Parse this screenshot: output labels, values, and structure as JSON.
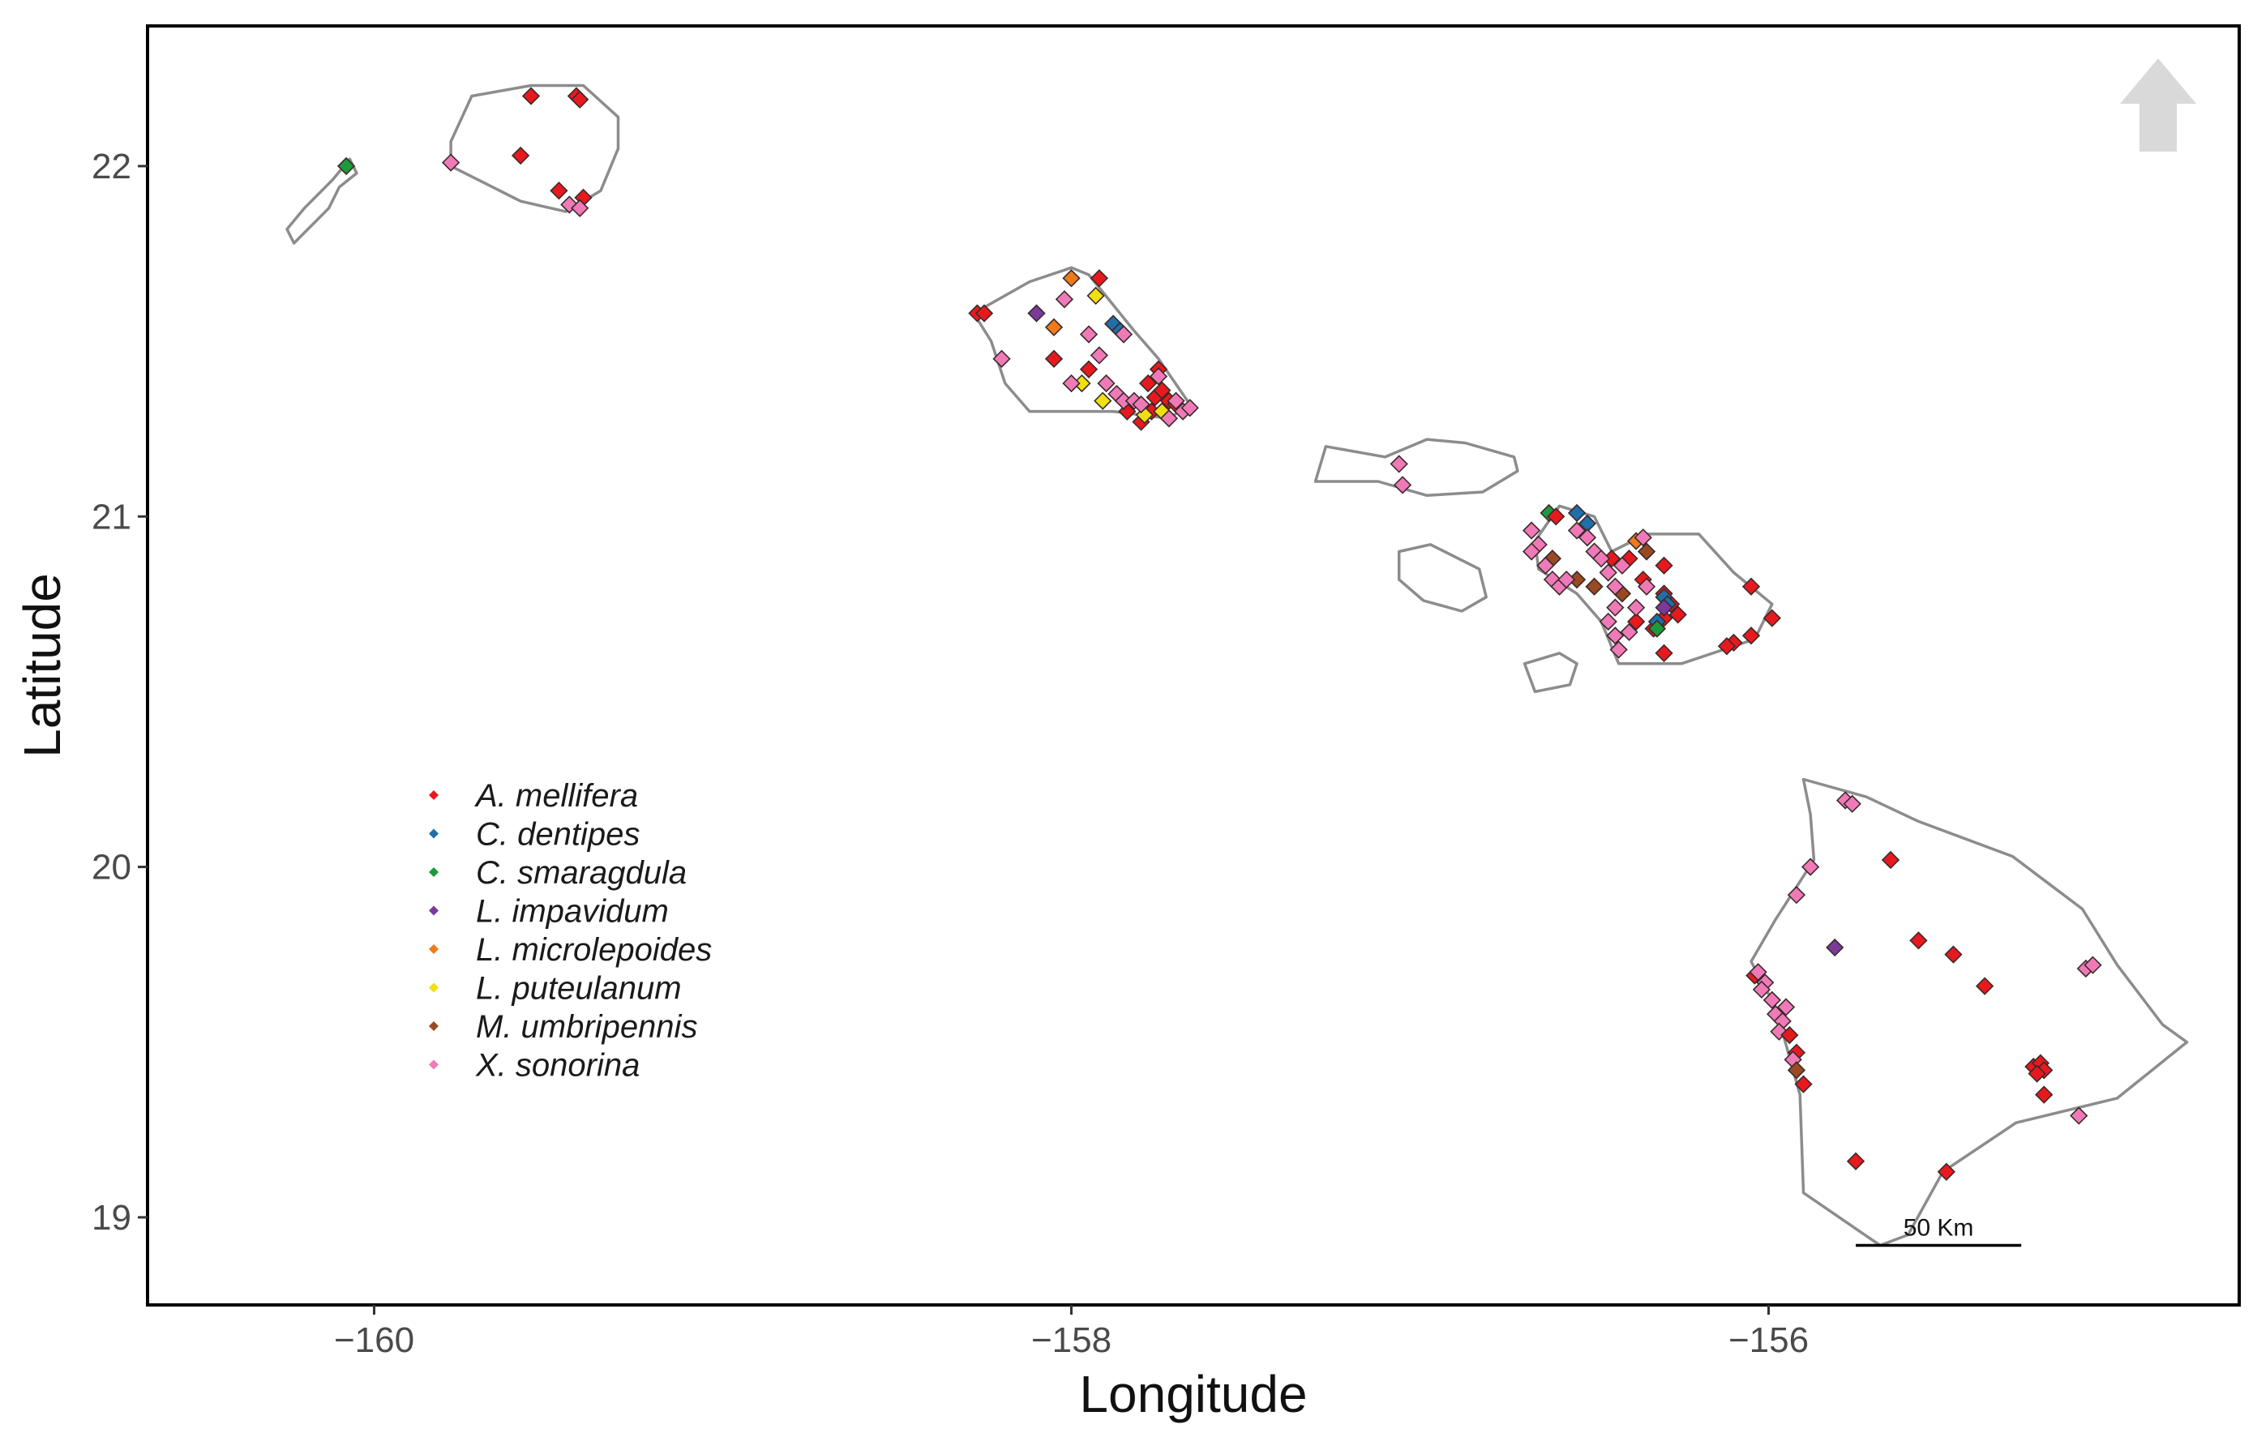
{
  "axes": {
    "xlabel": "Longitude",
    "ylabel": "Latitude",
    "xlim": [
      -160.65,
      -154.65
    ],
    "ylim": [
      18.75,
      22.4
    ],
    "x_ticks": [
      {
        "value": -160,
        "label": "−160"
      },
      {
        "value": -158,
        "label": "−158"
      },
      {
        "value": -156,
        "label": "−156"
      }
    ],
    "y_ticks": [
      {
        "value": 22,
        "label": "22"
      },
      {
        "value": 21,
        "label": "21"
      },
      {
        "value": 20,
        "label": "20"
      },
      {
        "value": 19,
        "label": "19"
      }
    ]
  },
  "map": {
    "north_arrow_icon": "north-arrow-icon",
    "scale_bar": {
      "label": "50 Km",
      "km": 50,
      "x_start": -155.75,
      "lat": 18.92
    },
    "islands": [
      {
        "name": "niihau",
        "coords": [
          [
            -160.05,
            21.98
          ],
          [
            -160.07,
            22.02
          ],
          [
            -160.12,
            21.96
          ],
          [
            -160.2,
            21.88
          ],
          [
            -160.25,
            21.82
          ],
          [
            -160.23,
            21.78
          ],
          [
            -160.17,
            21.84
          ],
          [
            -160.13,
            21.88
          ],
          [
            -160.1,
            21.94
          ],
          [
            -160.05,
            21.98
          ]
        ]
      },
      {
        "name": "kauai",
        "coords": [
          [
            -159.72,
            22.2
          ],
          [
            -159.55,
            22.23
          ],
          [
            -159.4,
            22.23
          ],
          [
            -159.3,
            22.14
          ],
          [
            -159.3,
            22.05
          ],
          [
            -159.35,
            21.93
          ],
          [
            -159.45,
            21.87
          ],
          [
            -159.58,
            21.9
          ],
          [
            -159.7,
            21.96
          ],
          [
            -159.78,
            22.0
          ],
          [
            -159.78,
            22.07
          ],
          [
            -159.72,
            22.2
          ]
        ]
      },
      {
        "name": "oahu",
        "coords": [
          [
            -158.28,
            21.58
          ],
          [
            -158.12,
            21.67
          ],
          [
            -158.0,
            21.71
          ],
          [
            -157.95,
            21.69
          ],
          [
            -157.82,
            21.53
          ],
          [
            -157.75,
            21.45
          ],
          [
            -157.66,
            21.32
          ],
          [
            -157.72,
            21.28
          ],
          [
            -157.88,
            21.3
          ],
          [
            -157.96,
            21.3
          ],
          [
            -158.05,
            21.3
          ],
          [
            -158.12,
            21.3
          ],
          [
            -158.19,
            21.38
          ],
          [
            -158.23,
            21.5
          ],
          [
            -158.28,
            21.58
          ]
        ]
      },
      {
        "name": "molokai",
        "coords": [
          [
            -157.3,
            21.1
          ],
          [
            -157.27,
            21.2
          ],
          [
            -157.1,
            21.17
          ],
          [
            -156.98,
            21.22
          ],
          [
            -156.87,
            21.21
          ],
          [
            -156.73,
            21.17
          ],
          [
            -156.72,
            21.13
          ],
          [
            -156.82,
            21.07
          ],
          [
            -156.98,
            21.06
          ],
          [
            -157.12,
            21.1
          ],
          [
            -157.3,
            21.1
          ]
        ]
      },
      {
        "name": "lanai",
        "coords": [
          [
            -157.06,
            20.9
          ],
          [
            -156.97,
            20.92
          ],
          [
            -156.83,
            20.85
          ],
          [
            -156.81,
            20.77
          ],
          [
            -156.88,
            20.73
          ],
          [
            -156.99,
            20.76
          ],
          [
            -157.06,
            20.82
          ],
          [
            -157.06,
            20.9
          ]
        ]
      },
      {
        "name": "kahoolawe",
        "coords": [
          [
            -156.7,
            20.58
          ],
          [
            -156.6,
            20.61
          ],
          [
            -156.55,
            20.58
          ],
          [
            -156.57,
            20.52
          ],
          [
            -156.67,
            20.5
          ],
          [
            -156.7,
            20.58
          ]
        ]
      },
      {
        "name": "maui",
        "coords": [
          [
            -156.67,
            20.93
          ],
          [
            -156.6,
            21.03
          ],
          [
            -156.5,
            21.0
          ],
          [
            -156.45,
            20.9
          ],
          [
            -156.35,
            20.95
          ],
          [
            -156.2,
            20.95
          ],
          [
            -156.1,
            20.84
          ],
          [
            -155.99,
            20.75
          ],
          [
            -156.04,
            20.65
          ],
          [
            -156.25,
            20.58
          ],
          [
            -156.43,
            20.58
          ],
          [
            -156.48,
            20.7
          ],
          [
            -156.55,
            20.78
          ],
          [
            -156.66,
            20.85
          ],
          [
            -156.67,
            20.93
          ]
        ]
      },
      {
        "name": "hawaii",
        "coords": [
          [
            -155.9,
            20.25
          ],
          [
            -155.72,
            20.2
          ],
          [
            -155.57,
            20.13
          ],
          [
            -155.3,
            20.03
          ],
          [
            -155.1,
            19.88
          ],
          [
            -155.0,
            19.72
          ],
          [
            -154.87,
            19.55
          ],
          [
            -154.8,
            19.5
          ],
          [
            -155.0,
            19.34
          ],
          [
            -155.29,
            19.27
          ],
          [
            -155.5,
            19.13
          ],
          [
            -155.6,
            18.95
          ],
          [
            -155.68,
            18.92
          ],
          [
            -155.9,
            19.07
          ],
          [
            -155.91,
            19.35
          ],
          [
            -155.98,
            19.6
          ],
          [
            -156.05,
            19.73
          ],
          [
            -155.98,
            19.85
          ],
          [
            -155.87,
            20.02
          ],
          [
            -155.88,
            20.15
          ],
          [
            -155.9,
            20.25
          ]
        ]
      }
    ]
  },
  "legend": {
    "entries": [
      {
        "label": "A. mellifera",
        "color": "#e8191e"
      },
      {
        "label": "C. dentipes",
        "color": "#1f6fa8"
      },
      {
        "label": "C. smaragdula",
        "color": "#1d9a3c"
      },
      {
        "label": "L. impavidum",
        "color": "#7a3a9a"
      },
      {
        "label": "L. microlepoides",
        "color": "#ee7a1c"
      },
      {
        "label": "L. puteulanum",
        "color": "#f0e010"
      },
      {
        "label": "M. umbripennis",
        "color": "#9a4a22"
      },
      {
        "label": "X. sonorina",
        "color": "#f07ab8"
      }
    ]
  },
  "occurrences": [
    [
      -159.55,
      22.2,
      0
    ],
    [
      -159.42,
      22.2,
      0
    ],
    [
      -159.41,
      22.19,
      0
    ],
    [
      -159.58,
      22.03,
      0
    ],
    [
      -159.47,
      21.93,
      0
    ],
    [
      -159.4,
      21.91,
      0
    ],
    [
      -159.78,
      22.01,
      7
    ],
    [
      -159.44,
      21.89,
      7
    ],
    [
      -159.41,
      21.88,
      7
    ],
    [
      -160.08,
      22.0,
      2
    ],
    [
      -158.27,
      21.58,
      0
    ],
    [
      -158.25,
      21.58,
      0
    ],
    [
      -158.05,
      21.45,
      0
    ],
    [
      -157.95,
      21.42,
      0
    ],
    [
      -157.92,
      21.68,
      0
    ],
    [
      -157.78,
      21.38,
      0
    ],
    [
      -157.76,
      21.34,
      0
    ],
    [
      -157.74,
      21.36,
      0
    ],
    [
      -157.77,
      21.3,
      0
    ],
    [
      -157.8,
      21.27,
      0
    ],
    [
      -157.84,
      21.3,
      0
    ],
    [
      -157.72,
      21.33,
      0
    ],
    [
      -157.7,
      21.32,
      0
    ],
    [
      -157.75,
      21.42,
      0
    ],
    [
      -157.88,
      21.55,
      1
    ],
    [
      -157.86,
      21.53,
      1
    ],
    [
      -158.1,
      21.58,
      3
    ],
    [
      -158.0,
      21.68,
      4
    ],
    [
      -158.05,
      21.54,
      4
    ],
    [
      -157.93,
      21.63,
      5
    ],
    [
      -157.97,
      21.38,
      5
    ],
    [
      -157.91,
      21.33,
      5
    ],
    [
      -157.79,
      21.29,
      5
    ],
    [
      -157.74,
      21.3,
      5
    ],
    [
      -158.2,
      21.45,
      7
    ],
    [
      -158.0,
      21.38,
      7
    ],
    [
      -157.9,
      21.38,
      7
    ],
    [
      -157.87,
      21.35,
      7
    ],
    [
      -157.85,
      21.33,
      7
    ],
    [
      -157.82,
      21.33,
      7
    ],
    [
      -157.92,
      21.46,
      7
    ],
    [
      -158.02,
      21.62,
      7
    ],
    [
      -157.95,
      21.52,
      7
    ],
    [
      -157.85,
      21.52,
      7
    ],
    [
      -157.75,
      21.4,
      7
    ],
    [
      -157.7,
      21.33,
      7
    ],
    [
      -157.68,
      21.3,
      7
    ],
    [
      -157.66,
      21.31,
      7
    ],
    [
      -157.72,
      21.28,
      7
    ],
    [
      -157.8,
      21.32,
      7
    ],
    [
      -157.06,
      21.15,
      7
    ],
    [
      -157.05,
      21.09,
      7
    ],
    [
      -156.63,
      21.01,
      2
    ],
    [
      -156.61,
      21.0,
      0
    ],
    [
      -156.55,
      21.01,
      1
    ],
    [
      -156.52,
      20.98,
      1
    ],
    [
      -156.45,
      20.88,
      0
    ],
    [
      -156.4,
      20.88,
      0
    ],
    [
      -156.36,
      20.82,
      0
    ],
    [
      -156.3,
      20.86,
      0
    ],
    [
      -156.3,
      20.78,
      0
    ],
    [
      -156.28,
      20.75,
      0
    ],
    [
      -156.3,
      20.71,
      0
    ],
    [
      -156.33,
      20.68,
      0
    ],
    [
      -156.38,
      20.7,
      0
    ],
    [
      -156.26,
      20.72,
      0
    ],
    [
      -156.3,
      20.61,
      0
    ],
    [
      -156.05,
      20.8,
      0
    ],
    [
      -155.99,
      20.71,
      0
    ],
    [
      -156.1,
      20.64,
      0
    ],
    [
      -156.05,
      20.66,
      0
    ],
    [
      -156.12,
      20.63,
      0
    ],
    [
      -156.3,
      20.77,
      1
    ],
    [
      -156.29,
      20.75,
      1
    ],
    [
      -156.32,
      20.7,
      1
    ],
    [
      -156.32,
      20.68,
      2
    ],
    [
      -156.3,
      20.74,
      3
    ],
    [
      -156.38,
      20.93,
      4
    ],
    [
      -156.5,
      20.8,
      6
    ],
    [
      -156.62,
      20.88,
      6
    ],
    [
      -156.55,
      20.82,
      6
    ],
    [
      -156.42,
      20.78,
      6
    ],
    [
      -156.35,
      20.9,
      6
    ],
    [
      -156.68,
      20.96,
      7
    ],
    [
      -156.66,
      20.92,
      7
    ],
    [
      -156.68,
      20.9,
      7
    ],
    [
      -156.64,
      20.86,
      7
    ],
    [
      -156.62,
      20.82,
      7
    ],
    [
      -156.6,
      20.8,
      7
    ],
    [
      -156.58,
      20.82,
      7
    ],
    [
      -156.55,
      20.96,
      7
    ],
    [
      -156.52,
      20.94,
      7
    ],
    [
      -156.5,
      20.9,
      7
    ],
    [
      -156.48,
      20.88,
      7
    ],
    [
      -156.46,
      20.84,
      7
    ],
    [
      -156.44,
      20.8,
      7
    ],
    [
      -156.44,
      20.74,
      7
    ],
    [
      -156.46,
      20.7,
      7
    ],
    [
      -156.44,
      20.66,
      7
    ],
    [
      -156.43,
      20.62,
      7
    ],
    [
      -156.4,
      20.67,
      7
    ],
    [
      -156.36,
      20.94,
      7
    ],
    [
      -156.42,
      20.86,
      7
    ],
    [
      -156.35,
      20.8,
      7
    ],
    [
      -156.38,
      20.74,
      7
    ],
    [
      -155.78,
      20.19,
      7
    ],
    [
      -155.76,
      20.18,
      7
    ],
    [
      -155.65,
      20.02,
      0
    ],
    [
      -155.88,
      20.0,
      7
    ],
    [
      -155.92,
      19.92,
      7
    ],
    [
      -155.81,
      19.77,
      3
    ],
    [
      -155.57,
      19.79,
      0
    ],
    [
      -155.47,
      19.75,
      0
    ],
    [
      -155.38,
      19.66,
      0
    ],
    [
      -155.09,
      19.71,
      7
    ],
    [
      -155.07,
      19.72,
      7
    ],
    [
      -155.24,
      19.43,
      0
    ],
    [
      -155.22,
      19.44,
      0
    ],
    [
      -155.21,
      19.42,
      0
    ],
    [
      -155.23,
      19.41,
      0
    ],
    [
      -155.21,
      19.35,
      0
    ],
    [
      -155.11,
      19.29,
      7
    ],
    [
      -155.75,
      19.16,
      0
    ],
    [
      -155.49,
      19.13,
      0
    ],
    [
      -156.04,
      19.69,
      0
    ],
    [
      -156.01,
      19.67,
      7
    ],
    [
      -156.02,
      19.65,
      7
    ],
    [
      -155.99,
      19.62,
      7
    ],
    [
      -155.98,
      19.58,
      7
    ],
    [
      -155.96,
      19.56,
      7
    ],
    [
      -155.97,
      19.53,
      7
    ],
    [
      -155.94,
      19.52,
      0
    ],
    [
      -155.92,
      19.47,
      0
    ],
    [
      -155.93,
      19.45,
      7
    ],
    [
      -155.92,
      19.42,
      6
    ],
    [
      -155.9,
      19.38,
      0
    ],
    [
      -156.03,
      19.7,
      7
    ],
    [
      -155.95,
      19.6,
      7
    ]
  ]
}
